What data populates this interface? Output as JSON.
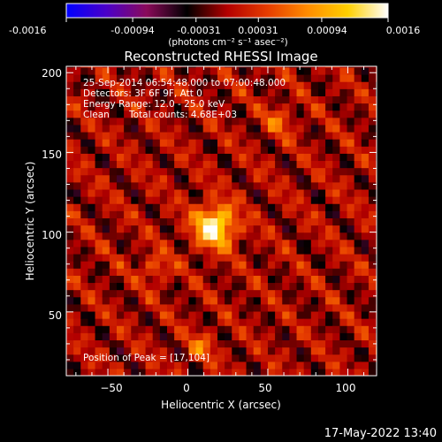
{
  "colors": {
    "background": "#000000",
    "foreground": "#ffffff",
    "colormap": [
      "#0000ff",
      "#4b00c8",
      "#8a0a5a",
      "#000000",
      "#b30000",
      "#e63c00",
      "#ff8c00",
      "#ffd000",
      "#ffffff"
    ]
  },
  "colorbar": {
    "tick_labels": [
      "-0.0016",
      "-0.00094",
      "-0.00031",
      "0.00031",
      "0.00094",
      "0.0016"
    ],
    "unit_label": "(photons cm⁻² s⁻¹ asec⁻²)",
    "range": [
      -0.0016,
      0.0016
    ]
  },
  "chart_data": {
    "type": "heatmap",
    "title": "Reconstructed RHESSI Image",
    "xlabel": "Heliocentric X (arcsec)",
    "ylabel": "Heliocentric Y (arcsec)",
    "xlim": [
      -76,
      118
    ],
    "ylim": [
      10,
      204
    ],
    "x_ticks": [
      -50,
      0,
      50,
      100
    ],
    "y_ticks": [
      50,
      100,
      150,
      200
    ],
    "x_tick_labels": [
      "−50",
      "0",
      "50",
      "100"
    ],
    "y_tick_labels": [
      "50",
      "100",
      "150",
      "200"
    ],
    "colorscale_range": [
      -0.0016,
      0.0016
    ],
    "peak": {
      "x": 17,
      "y": 104
    },
    "secondary_sources": [
      {
        "x": 57,
        "y": 170
      },
      {
        "x": -20,
        "y": 78
      },
      {
        "x": 8,
        "y": 28
      }
    ],
    "annotations": [
      "25-Sep-2014 06:54:48.000 to 07:00:48.000",
      "Detectors: 3F 6F 9F, Att 0",
      "Energy Range: 12.0 - 25.0 keV",
      "Clean",
      "Total counts: 4.68E+03"
    ],
    "peak_label": "Position of Peak = [17,104]"
  },
  "footer": {
    "timestamp": "17-May-2022 13:40"
  }
}
